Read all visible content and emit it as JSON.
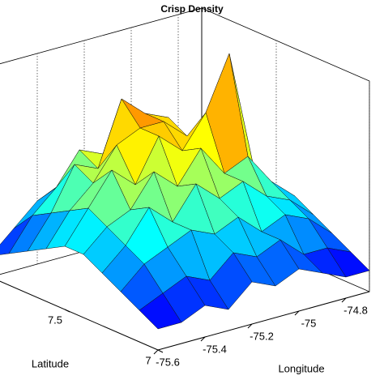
{
  "chart_data": {
    "type": "surface",
    "title": "Crisp Density",
    "xlabel": "Longitude",
    "ylabel": "Latitude",
    "x": [
      -75.6,
      -75.5,
      -75.4,
      -75.3,
      -75.2,
      -75.1,
      -75.0,
      -74.9,
      -74.8,
      -74.7
    ],
    "y": [
      7.0,
      7.1,
      7.2,
      7.3,
      7.4,
      7.5,
      7.6,
      7.7,
      7.8,
      7.9
    ],
    "z": [
      [
        1,
        1,
        1.5,
        1,
        2,
        1.5,
        2,
        1.5,
        1,
        1
      ],
      [
        1.5,
        2,
        2.5,
        2,
        3,
        2.5,
        3,
        2,
        2,
        1.5
      ],
      [
        2,
        3,
        3.5,
        4,
        3.5,
        4,
        3,
        3.5,
        3,
        2
      ],
      [
        2.5,
        3.5,
        5,
        4,
        5.5,
        4.5,
        5,
        4,
        3.5,
        2.5
      ],
      [
        3,
        4,
        4.5,
        6,
        5,
        6.5,
        5,
        5.5,
        4,
        3
      ],
      [
        3,
        4.5,
        6,
        5,
        7,
        6,
        7.5,
        10,
        4.5,
        3
      ],
      [
        2.5,
        4,
        5,
        6.5,
        7,
        7,
        6,
        6.5,
        4,
        2.5
      ],
      [
        2,
        3.5,
        5.5,
        5,
        8,
        7,
        6.5,
        5,
        3.5,
        2
      ],
      [
        1.5,
        3,
        4,
        5.5,
        5,
        6,
        5,
        4,
        3,
        1.5
      ],
      [
        1,
        2,
        3,
        3.5,
        4,
        3.5,
        4,
        3,
        2,
        1
      ]
    ],
    "xlim": [
      -75.6,
      -74.7
    ],
    "ylim": [
      7,
      7.9
    ],
    "zlim": [
      0,
      10
    ],
    "xticks": [
      -75.6,
      -75.4,
      -75.2,
      -75,
      -74.8
    ],
    "yticks": [
      7,
      7.5
    ],
    "colormap": "jet",
    "grid": true
  }
}
